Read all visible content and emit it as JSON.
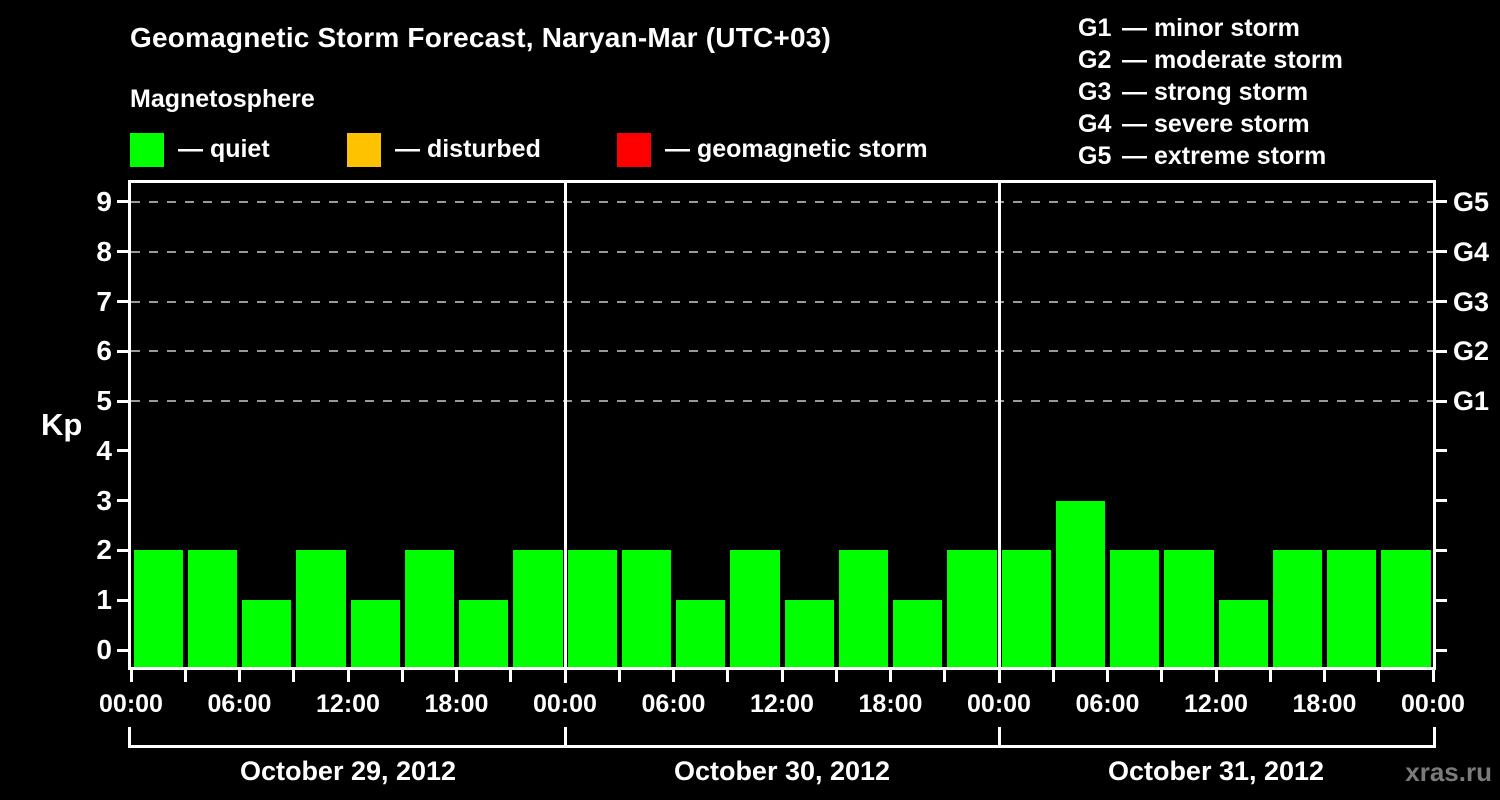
{
  "title": "Geomagnetic Storm Forecast, Naryan-Mar (UTC+03)",
  "subtitle": "Magnetosphere",
  "kp_legend": {
    "items": [
      {
        "name": "quiet",
        "color": "#00FF00",
        "label": "— quiet"
      },
      {
        "name": "disturbed",
        "color": "#FFC200",
        "label": "— disturbed"
      },
      {
        "name": "geomagnetic-storm",
        "color": "#FF0000",
        "label": "— geomagnetic storm"
      }
    ]
  },
  "g_legend": {
    "items": [
      {
        "code": "G1",
        "label": "— minor storm"
      },
      {
        "code": "G2",
        "label": "— moderate storm"
      },
      {
        "code": "G3",
        "label": "— strong storm"
      },
      {
        "code": "G4",
        "label": "— severe storm"
      },
      {
        "code": "G5",
        "label": "— extreme storm"
      }
    ]
  },
  "watermark": "xras.ru",
  "chart_data": {
    "type": "bar",
    "title": "Geomagnetic Storm Forecast, Naryan-Mar (UTC+03)",
    "subtitle": "Magnetosphere",
    "ylabel": "Kp",
    "ylim": [
      0,
      9
    ],
    "bar_color": "#00FF00",
    "grid": "dashed-horizontal",
    "grid_levels": [
      5,
      6,
      7,
      8,
      9
    ],
    "y_ticks": [
      "0",
      "1",
      "2",
      "3",
      "4",
      "5",
      "6",
      "7",
      "8",
      "9"
    ],
    "right_axis_labels": [
      {
        "kp": 9,
        "label": "G5"
      },
      {
        "kp": 8,
        "label": "G4"
      },
      {
        "kp": 7,
        "label": "G3"
      },
      {
        "kp": 6,
        "label": "G2"
      },
      {
        "kp": 5,
        "label": "G1"
      }
    ],
    "hours_per_bar": 3,
    "time_tick_hours": 6,
    "time_tick_labels": [
      "00:00",
      "06:00",
      "12:00",
      "18:00",
      "00:00",
      "06:00",
      "12:00",
      "18:00",
      "00:00",
      "06:00",
      "12:00",
      "18:00",
      "00:00"
    ],
    "legend_position": "top",
    "days": [
      {
        "date": "October 29, 2012",
        "values": [
          2,
          2,
          1,
          2,
          1,
          2,
          1,
          2
        ]
      },
      {
        "date": "October 30, 2012",
        "values": [
          2,
          2,
          1,
          2,
          1,
          2,
          1,
          2
        ]
      },
      {
        "date": "October 31, 2012",
        "values": [
          2,
          3,
          2,
          2,
          1,
          2,
          2,
          2
        ]
      }
    ]
  }
}
